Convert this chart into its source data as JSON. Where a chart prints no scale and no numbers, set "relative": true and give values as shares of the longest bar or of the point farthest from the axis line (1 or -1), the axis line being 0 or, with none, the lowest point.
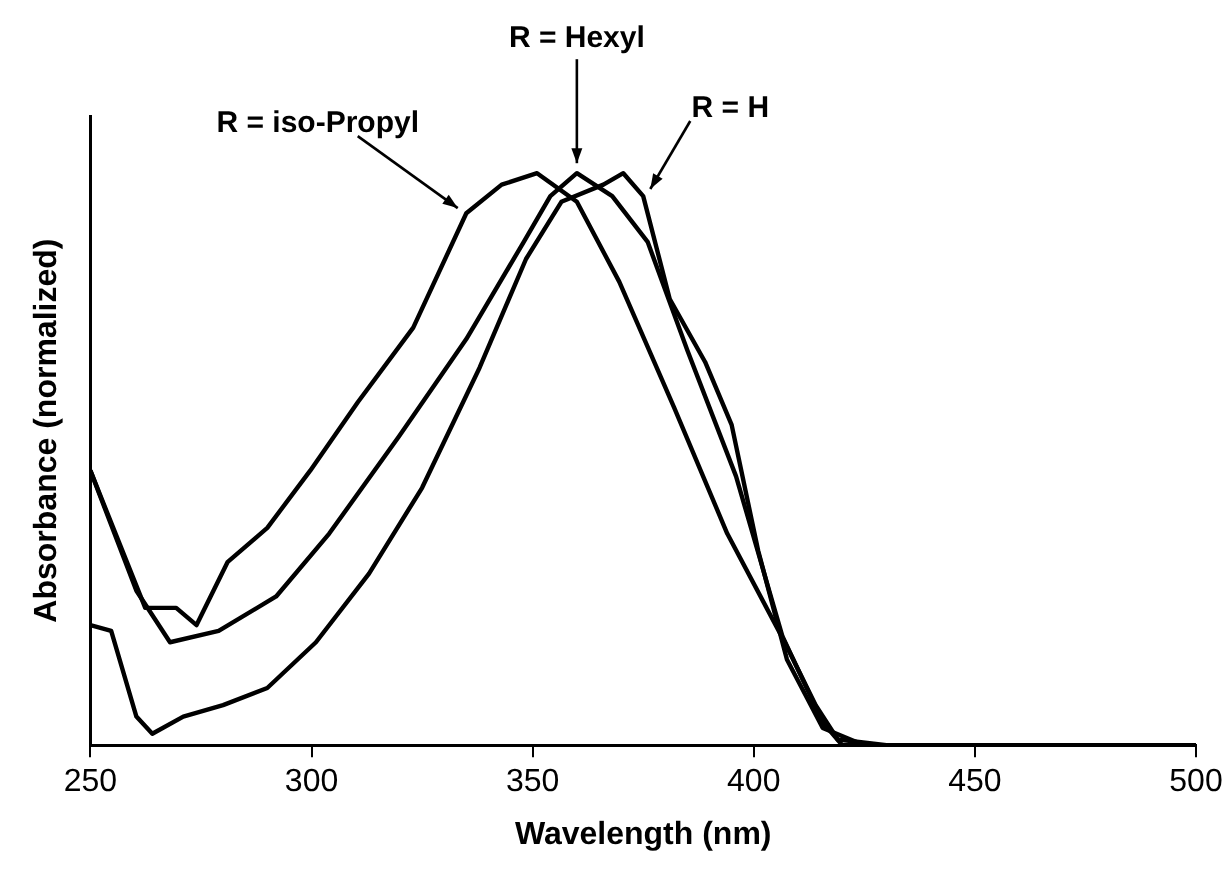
{
  "chart_data": {
    "type": "line",
    "xlabel": "Wavelength (nm)",
    "ylabel": "Absorbance (normalized)",
    "relative": true,
    "xlim": [
      250,
      500
    ],
    "xticks": [
      250,
      300,
      350,
      400,
      450,
      500
    ],
    "grid": false,
    "legend": false,
    "marker": "none",
    "line_style": "solid",
    "annotations": [
      {
        "text": "R = iso-Propyl",
        "x": 335,
        "y": 0.93
      },
      {
        "text": "R = Hexyl",
        "x": 360,
        "y": 1.0
      },
      {
        "text": "R = H",
        "x": 375,
        "y": 0.96
      }
    ],
    "series": [
      {
        "color": "#000000",
        "x": [
          250,
          262.4,
          269.4,
          274,
          281,
          290,
          299.7,
          310.5,
          323,
          335,
          343,
          351,
          360,
          369.6,
          382,
          394,
          407,
          414,
          419,
          430,
          500
        ],
        "values": [
          0.48,
          0.24,
          0.24,
          0.21,
          0.32,
          0.38,
          0.48,
          0.6,
          0.73,
          0.93,
          0.98,
          1.0,
          0.95,
          0.81,
          0.59,
          0.37,
          0.18,
          0.07,
          0.01,
          0,
          0
        ]
      },
      {
        "color": "#000000",
        "x": [
          250,
          260.4,
          268,
          279,
          292,
          304,
          319.8,
          335,
          348,
          354,
          360,
          368,
          376,
          385,
          396,
          406.5,
          415.6,
          420,
          430,
          500
        ],
        "values": [
          0.48,
          0.27,
          0.18,
          0.2,
          0.26,
          0.37,
          0.54,
          0.71,
          0.88,
          0.96,
          1.0,
          0.96,
          0.88,
          0.69,
          0.47,
          0.19,
          0.04,
          0,
          0,
          0
        ]
      },
      {
        "color": "#000000",
        "x": [
          250,
          254.7,
          260.4,
          264,
          271,
          280,
          290,
          301,
          313,
          325,
          338,
          348.5,
          356.5,
          366,
          370.5,
          375,
          381,
          389,
          395,
          401,
          407.5,
          415.6,
          425,
          500
        ],
        "values": [
          0.21,
          0.2,
          0.05,
          0.02,
          0.05,
          0.07,
          0.1,
          0.18,
          0.3,
          0.45,
          0.66,
          0.85,
          0.95,
          0.98,
          1.0,
          0.96,
          0.78,
          0.67,
          0.56,
          0.34,
          0.15,
          0.03,
          0,
          0
        ]
      }
    ]
  }
}
